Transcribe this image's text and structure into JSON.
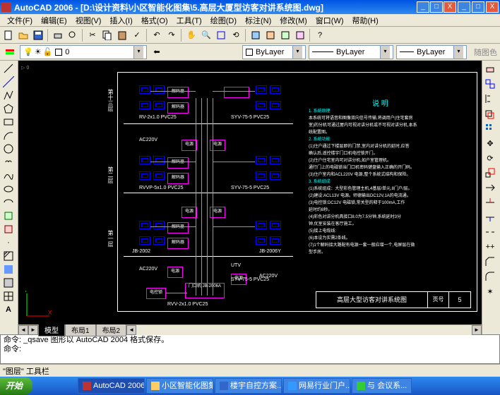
{
  "window": {
    "title": "AutoCAD 2006 - [D:\\设计资料\\小区智能化图集\\5.高层大厦型访客对讲系统图.dwg]",
    "min": "_",
    "max": "□",
    "close": "X"
  },
  "menu": {
    "items": [
      "文件(F)",
      "编辑(E)",
      "视图(V)",
      "插入(I)",
      "格式(O)",
      "工具(T)",
      "绘图(D)",
      "标注(N)",
      "修改(M)",
      "窗口(W)",
      "帮助(H)"
    ]
  },
  "layerbar": {
    "layer_label": "0",
    "bylayer1": "ByLayer",
    "bylayer2": "ByLayer",
    "bylayer3": "ByLayer",
    "color_label": "随图色"
  },
  "tabs": {
    "model": "模型",
    "layout1": "布局1",
    "layout2": "布局2"
  },
  "cmd": {
    "line1": "命令: _qsave 图形以 AutoCAD 2004 格式保存。",
    "line2": "命令:"
  },
  "status": {
    "text": "\"图层\" 工具栏"
  },
  "taskbar": {
    "start": "开始",
    "items": [
      "AutoCAD 2006...",
      "小区智能化图集",
      "楼宇自控方案...",
      "网易行业门户...",
      "与 会议系..."
    ]
  },
  "drawing": {
    "colors": {
      "bg": "#000000",
      "border": "#ffffff",
      "device": "#ff00ff",
      "wire": "#00ff00",
      "text": "#ffffff",
      "cyan": "#00ffff",
      "blue": "#0000ff"
    },
    "floor_labels": [
      "第十三层",
      "第二层",
      "第一层"
    ],
    "cable_labels": [
      "RV-2x1.0 PVC25",
      "SYV-75-5 PVC25",
      "AC220V",
      "RVVP-5x1.0 PVC25",
      "SYV-75-5 PVC25",
      "JB-2002",
      "AC220V",
      "JB-2006Y",
      "UTV",
      "RVV-2x1.0 PVC25",
      "SYV-75-5 PVC25",
      "AC220V"
    ],
    "box_labels": [
      "解码器",
      "解码器",
      "电源",
      "电源",
      "解码器",
      "解码器",
      "电源",
      "电源",
      "解码器",
      "解码器",
      "电源",
      "门口机 JB-2006A",
      "电控锁"
    ],
    "notes_title": "说 明",
    "notes": [
      "1. 系统原理",
      "本系统可将语音和图像双向信号传输,将调用户(住宅套房",
      "室)的分机可通过屋内可视对讲分机或不可视对讲分机,本系",
      "统配置图。",
      "2. 系统功能",
      "(1)住户通过下楼层即的门禁,室内对讲分机的延时,应答",
      "确认后,遥控楼宇门口机电控锁开门。",
      "(2)住户住宅室内可对讲分机,如户室管理机。",
      "通行门上的电磁锁当门口机密码键盘输入正确的开门码。",
      "(3)住户室内和ACL220V 电源,整个系统式结构和保险。",
      "3. 系统组成",
      "(1)系统组成：大型彩色管理主机,4基层/单元,8门户/层。",
      "(2)建设:ACL13V 电源。师德输出DC12V,1A的电流通。",
      "(3)电控锁:DC12V 电磁锁,常关型的释于100mA,工作",
      "延时约8秒。",
      "(4)彩色对讲分机具接口8.0为7.5分钟,系统延时3分",
      "钟,优室安装在客厅施工。",
      "(5)接上电缆线:",
      "(6)本设为实需2条线。",
      "(7)1个解码接大路配有电源一套一般应增一个,电屏层在微",
      "型手房。"
    ],
    "title_block": {
      "name": "高层大型访客对讲系统图",
      "sheet_label": "页号",
      "sheet": "5"
    }
  }
}
